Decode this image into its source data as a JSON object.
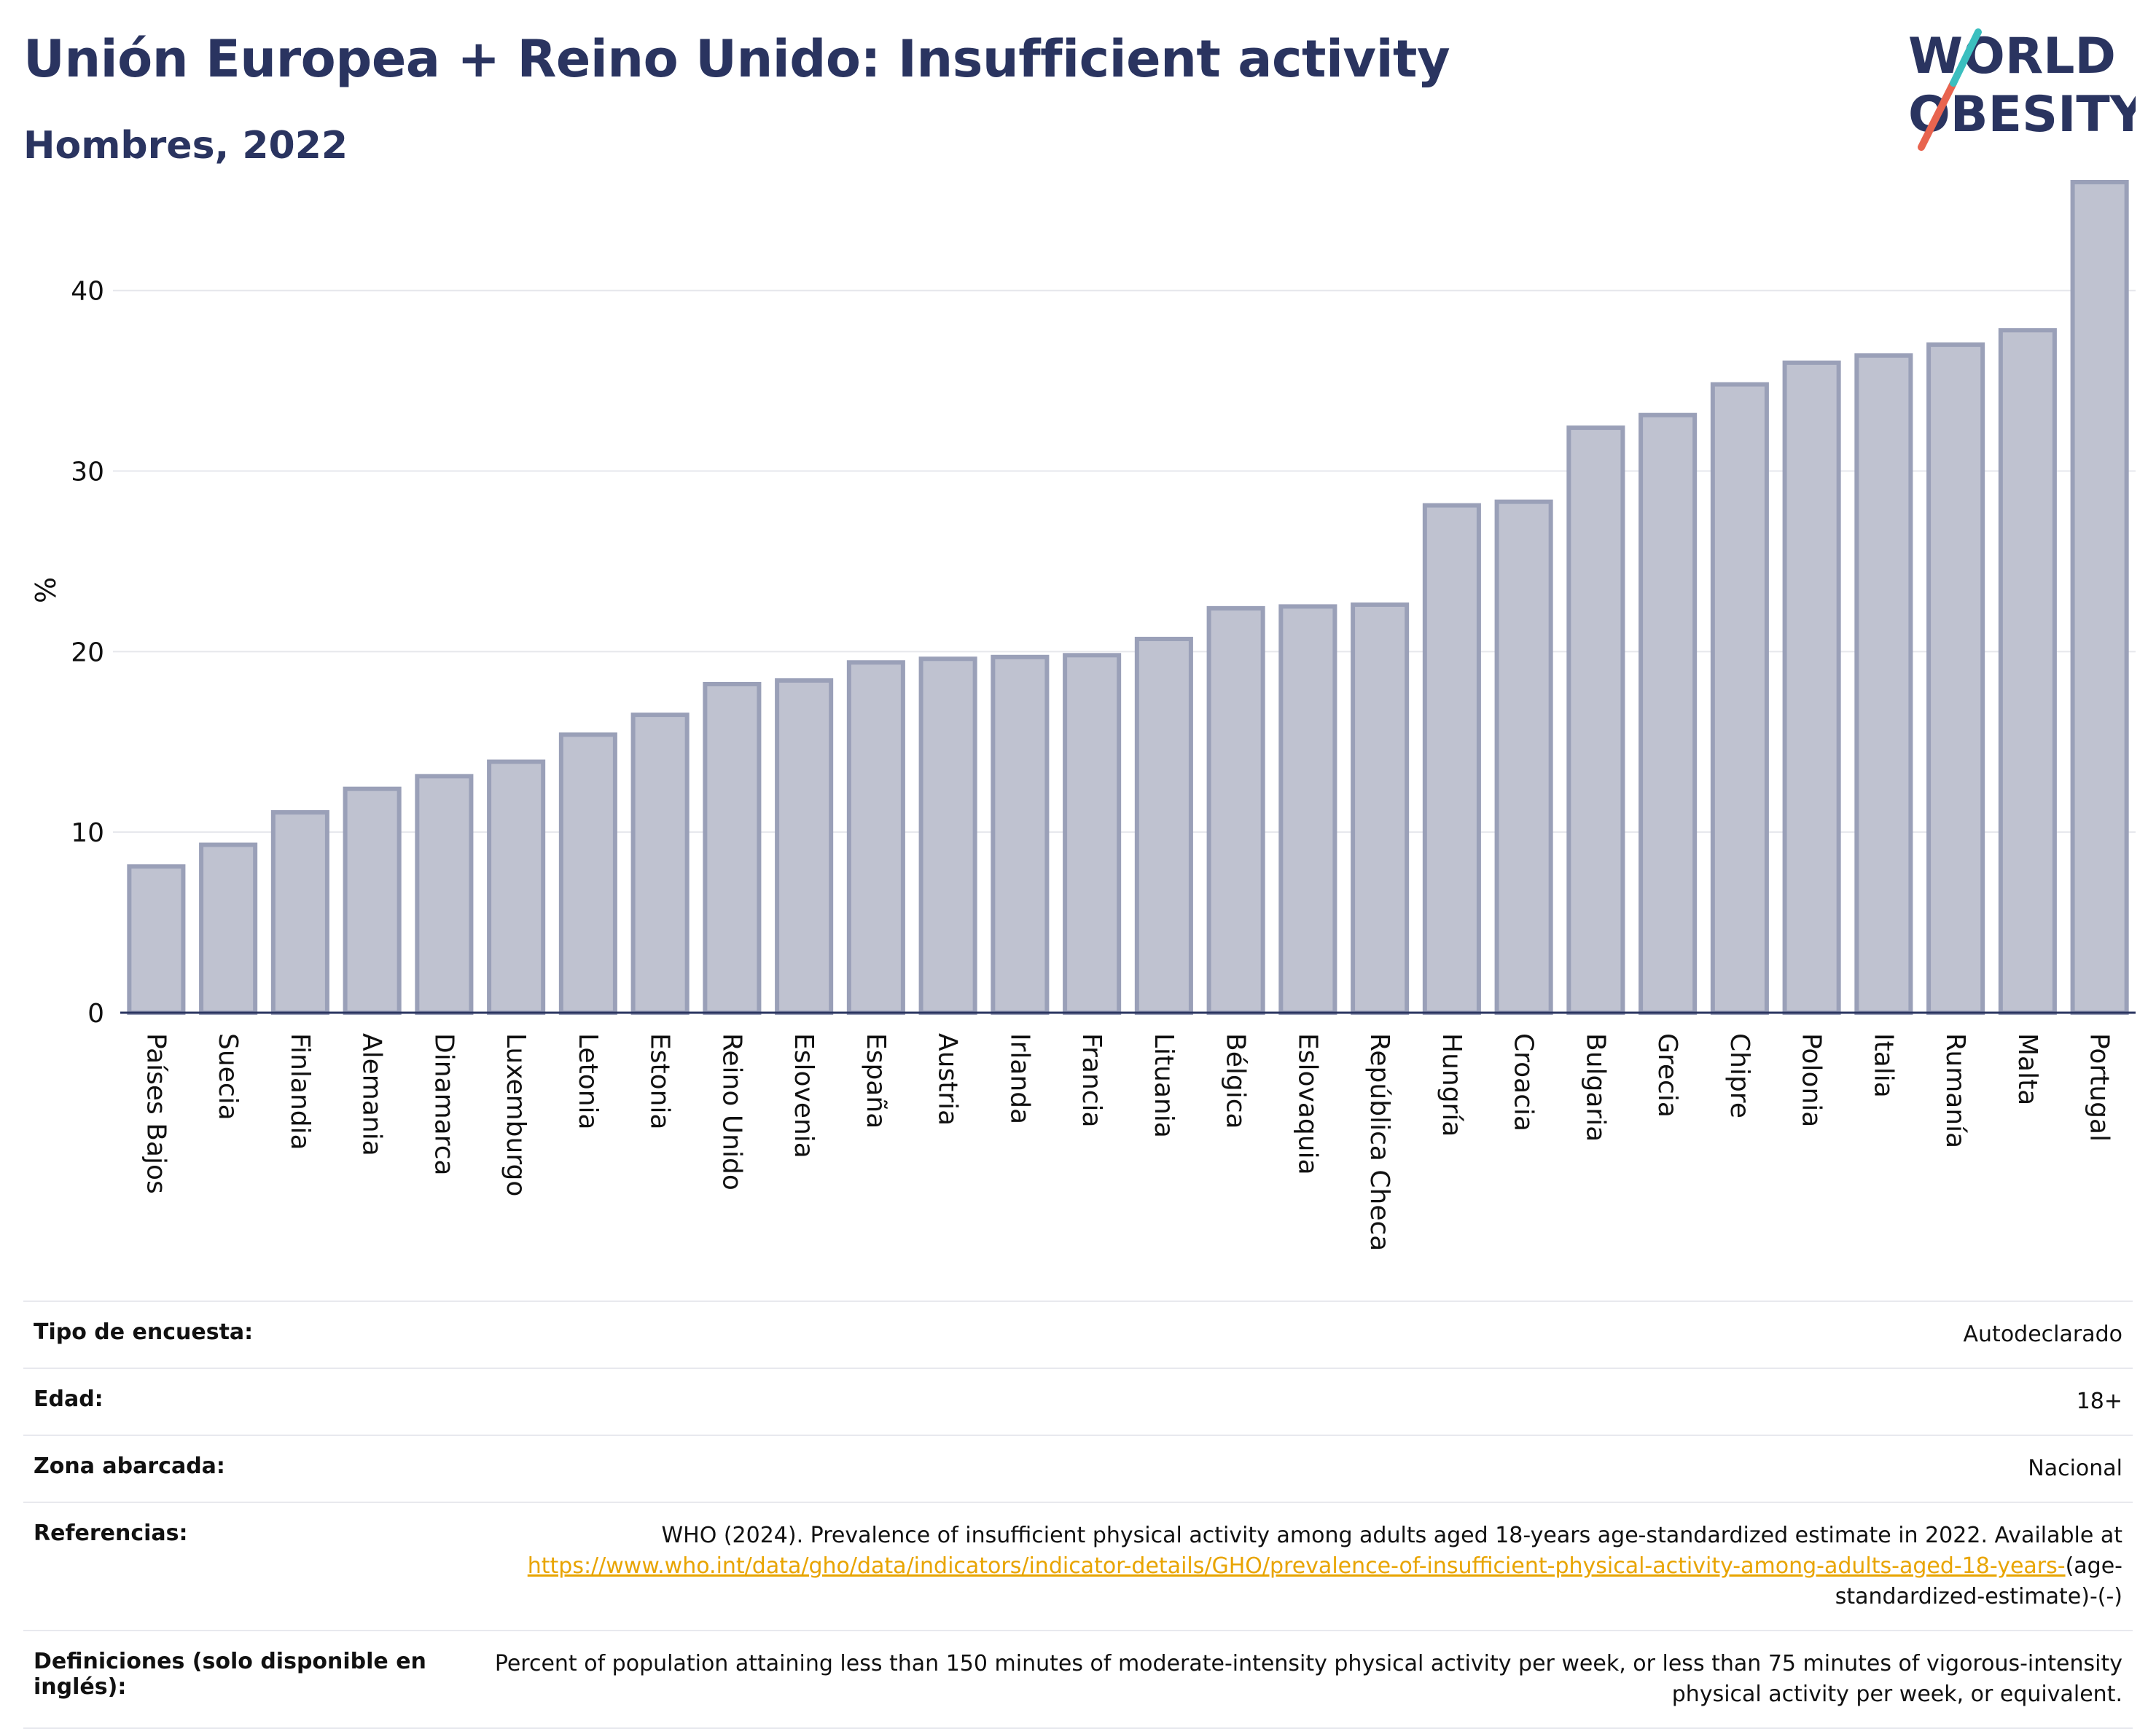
{
  "header": {
    "title": "Unión Europea + Reino Unido: Insufficient activity",
    "subtitle": "Hombres, 2022"
  },
  "logo": {
    "line1": "WORLD",
    "line2": "OBESITY",
    "accent_colors": [
      "#e8644f",
      "#3bbfbf"
    ]
  },
  "chart_data": {
    "type": "bar",
    "ylabel": "%",
    "ylim": [
      0,
      46
    ],
    "yticks": [
      0,
      10,
      20,
      30,
      40
    ],
    "grid": true,
    "bar_color": "#bfc2d0",
    "bar_edge_color": "#9aa0b8",
    "categories": [
      "Países Bajos",
      "Suecia",
      "Finlandia",
      "Alemania",
      "Dinamarca",
      "Luxemburgo",
      "Letonia",
      "Estonia",
      "Reino Unido",
      "Eslovenia",
      "España",
      "Austria",
      "Irlanda",
      "Francia",
      "Lituania",
      "Bélgica",
      "Eslovaquia",
      "República Checa",
      "Hungría",
      "Croacia",
      "Bulgaria",
      "Grecia",
      "Chipre",
      "Polonia",
      "Italia",
      "Rumanía",
      "Malta",
      "Portugal"
    ],
    "values": [
      8.1,
      9.3,
      11.1,
      12.4,
      13.1,
      13.9,
      15.4,
      16.5,
      18.2,
      18.4,
      19.4,
      19.6,
      19.7,
      19.8,
      20.7,
      22.4,
      22.5,
      22.6,
      28.1,
      28.3,
      32.4,
      33.1,
      34.8,
      36.0,
      36.4,
      37.0,
      37.8,
      46.0
    ]
  },
  "info_table": [
    {
      "label": "Tipo de encuesta:",
      "value": "Autodeclarado"
    },
    {
      "label": "Edad:",
      "value": "18+"
    },
    {
      "label": "Zona abarcada:",
      "value": "Nacional"
    },
    {
      "label": "Referencias:",
      "value_prefix": "WHO (2024). Prevalence of insufficient physical activity among adults aged 18-years age-standardized estimate in 2022. Available at",
      "link": "https://www.who.int/data/gho/data/indicators/indicator-details/GHO/prevalence-of-insufficient-physical-activity-among-adults-aged-18-years-",
      "value_suffix": "(age-standardized-estimate)-(-)"
    },
    {
      "label": "Definiciones (solo disponible en inglés):",
      "value": "Percent of population attaining less than 150 minutes of moderate-intensity physical activity per week, or less than 75 minutes of vigorous-intensity physical activity per week, or equivalent."
    }
  ]
}
